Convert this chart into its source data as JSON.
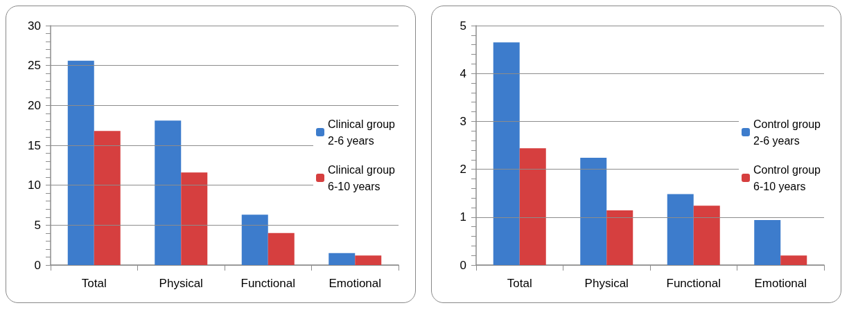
{
  "chart_data": [
    {
      "type": "bar",
      "categories": [
        "Total",
        "Physical",
        "Functional",
        "Emotional"
      ],
      "series": [
        {
          "name": "Clinical group 2-6 years",
          "color": "#3d7ccc",
          "values": [
            25.6,
            18.1,
            6.3,
            1.5
          ]
        },
        {
          "name": "Clinical group 6-10 years",
          "color": "#d63f3f",
          "values": [
            16.8,
            11.6,
            4.0,
            1.2
          ]
        }
      ],
      "ylim": [
        0,
        30
      ],
      "yticks": [
        0,
        {
          "value": 1,
          "label": null
        },
        {
          "value": 2,
          "label": null
        },
        {
          "value": 3,
          "label": null
        },
        {
          "value": 4,
          "label": null
        },
        5,
        {
          "value": 6,
          "label": null
        },
        {
          "value": 7,
          "label": null
        },
        {
          "value": 8,
          "label": null
        },
        {
          "value": 9,
          "label": null
        },
        10,
        {
          "value": 11,
          "label": null
        },
        {
          "value": 12,
          "label": null
        },
        {
          "value": 13,
          "label": null
        },
        {
          "value": 14,
          "label": null
        },
        15,
        {
          "value": 16,
          "label": null
        },
        {
          "value": 17,
          "label": null
        },
        {
          "value": 18,
          "label": null
        },
        {
          "value": 19,
          "label": null
        },
        20,
        {
          "value": 21,
          "label": null
        },
        {
          "value": 22,
          "label": null
        },
        {
          "value": 23,
          "label": null
        },
        {
          "value": 24,
          "label": null
        },
        25,
        {
          "value": 26,
          "label": null
        },
        {
          "value": 27,
          "label": null
        },
        {
          "value": 28,
          "label": null
        },
        {
          "value": 29,
          "label": null
        },
        30
      ],
      "grid": "y",
      "legend": "right"
    },
    {
      "type": "bar",
      "categories": [
        "Total",
        "Physical",
        "Functional",
        "Emotional"
      ],
      "series": [
        {
          "name": "Control group 2-6 years",
          "color": "#3d7ccc",
          "values": [
            4.65,
            2.24,
            1.48,
            0.94
          ]
        },
        {
          "name": "Control group 6-10 years",
          "color": "#d63f3f",
          "values": [
            2.44,
            1.14,
            1.24,
            0.2
          ]
        }
      ],
      "ylim": [
        0,
        5
      ],
      "yticks": [
        0,
        {
          "value": 0.2,
          "label": null
        },
        {
          "value": 0.4,
          "label": null
        },
        {
          "value": 0.6,
          "label": null
        },
        {
          "value": 0.8,
          "label": null
        },
        1,
        {
          "value": 1.2,
          "label": null
        },
        {
          "value": 1.4,
          "label": null
        },
        {
          "value": 1.6,
          "label": null
        },
        {
          "value": 1.8,
          "label": null
        },
        2,
        {
          "value": 2.2,
          "label": null
        },
        {
          "value": 2.4,
          "label": null
        },
        {
          "value": 2.6,
          "label": null
        },
        {
          "value": 2.8,
          "label": null
        },
        3,
        {
          "value": 3.2,
          "label": null
        },
        {
          "value": 3.4,
          "label": null
        },
        {
          "value": 3.6,
          "label": null
        },
        {
          "value": 3.8,
          "label": null
        },
        4,
        {
          "value": 4.2,
          "label": null
        },
        {
          "value": 4.4,
          "label": null
        },
        {
          "value": 4.6,
          "label": null
        },
        {
          "value": 4.8,
          "label": null
        },
        5
      ],
      "grid": "y",
      "legend": "right"
    }
  ]
}
